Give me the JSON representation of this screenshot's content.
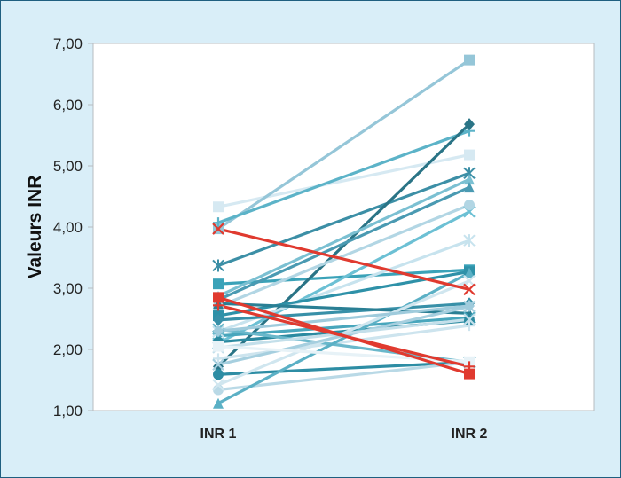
{
  "chart_data": {
    "type": "line",
    "categories": [
      "INR 1",
      "INR 2"
    ],
    "ylabel": "Valeurs INR",
    "xlabel": "",
    "title": "",
    "ylim": [
      1,
      7
    ],
    "yticks": [
      "1,00",
      "2,00",
      "3,00",
      "4,00",
      "5,00",
      "6,00",
      "7,00"
    ],
    "grid": false,
    "series": [
      {
        "values": [
          4.33,
          5.18
        ],
        "color": "#d6e9f2",
        "marker": "square"
      },
      {
        "values": [
          3.97,
          6.73
        ],
        "color": "#95c6d8",
        "marker": "square"
      },
      {
        "values": [
          4.07,
          5.57
        ],
        "color": "#5cb3c8",
        "marker": "plus"
      },
      {
        "values": [
          3.37,
          4.88
        ],
        "color": "#3c8fa6",
        "marker": "star"
      },
      {
        "values": [
          3.07,
          3.3
        ],
        "color": "#3aa2b8",
        "marker": "square"
      },
      {
        "values": [
          1.72,
          5.68
        ],
        "color": "#2a7486",
        "marker": "diamond"
      },
      {
        "values": [
          2.87,
          4.78
        ],
        "color": "#7bc0d2",
        "marker": "triangle"
      },
      {
        "values": [
          2.81,
          4.65
        ],
        "color": "#4a9ab2",
        "marker": "triangle"
      },
      {
        "values": [
          2.1,
          4.25
        ],
        "color": "#6cc0d4",
        "marker": "x"
      },
      {
        "values": [
          2.7,
          4.36
        ],
        "color": "#b2d6e4",
        "marker": "circle"
      },
      {
        "values": [
          2.29,
          3.78
        ],
        "color": "#c7e3ee",
        "marker": "star"
      },
      {
        "values": [
          2.55,
          3.27
        ],
        "color": "#2e91a8",
        "marker": "square"
      },
      {
        "values": [
          2.48,
          2.75
        ],
        "color": "#3890a8",
        "marker": "diamond"
      },
      {
        "values": [
          2.75,
          2.59
        ],
        "color": "#2a7f94",
        "marker": "triangle"
      },
      {
        "values": [
          2.22,
          2.52
        ],
        "color": "#48a6bc",
        "marker": "x"
      },
      {
        "values": [
          2.12,
          2.47
        ],
        "color": "#2b8aa0",
        "marker": "circle"
      },
      {
        "values": [
          1.85,
          2.39
        ],
        "color": "#cde4ee",
        "marker": "plus"
      },
      {
        "values": [
          2.33,
          1.79
        ],
        "color": "#6ab8cb",
        "marker": "x"
      },
      {
        "values": [
          1.59,
          1.79
        ],
        "color": "#2d8da4",
        "marker": "circle"
      },
      {
        "values": [
          1.34,
          1.79
        ],
        "color": "#b9d9e6",
        "marker": "circle"
      },
      {
        "values": [
          1.12,
          3.25
        ],
        "color": "#5bb0c5",
        "marker": "triangle"
      },
      {
        "values": [
          1.42,
          3.12
        ],
        "color": "#d0e6ef",
        "marker": "x"
      },
      {
        "values": [
          1.75,
          2.7
        ],
        "color": "#a6cfdf",
        "marker": "x"
      },
      {
        "values": [
          2.3,
          2.71
        ],
        "color": "#9fcbdc",
        "marker": "diamond"
      },
      {
        "values": [
          2.03,
          2.49
        ],
        "color": "#c3dfea",
        "marker": "x"
      },
      {
        "values": [
          2.05,
          1.8
        ],
        "color": "#e7f2f7",
        "marker": "square"
      },
      {
        "values": [
          3.97,
          2.98
        ],
        "color": "#e03a2f",
        "marker": "x"
      },
      {
        "values": [
          2.85,
          1.6
        ],
        "color": "#e03a2f",
        "marker": "square"
      },
      {
        "values": [
          2.72,
          1.72
        ],
        "color": "#e03a2f",
        "marker": "plus"
      }
    ]
  }
}
